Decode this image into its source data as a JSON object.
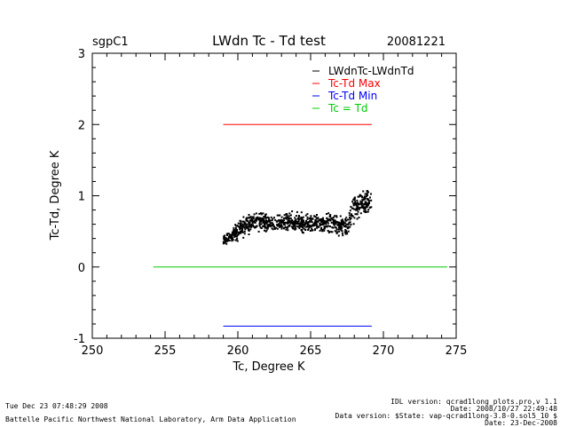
{
  "header": {
    "site": "sgpC1",
    "title": "LWdn Tc - Td test",
    "date": "20081221"
  },
  "footer": {
    "timestamp": "Tue Dec 23 07:48:29 2008",
    "lab": "Battelle Pacific Northwest National Laboratory, Arm Data Application",
    "idl_version": "IDL version: qcrad1long_plots.pro,v 1.1",
    "idl_date": "Date: 2008/10/27 22:49:48",
    "data_version": "Data version: $State: vap-qcrad1long-3.8-0.sol5_10 $",
    "data_date": "Date: 23-Dec-2008"
  },
  "chart_data": {
    "type": "scatter",
    "title": "LWdn Tc - Td test",
    "xlabel": "Tc, Degree K",
    "ylabel": "Tc-Td, Degree K",
    "xlim": [
      250,
      275
    ],
    "ylim": [
      -1,
      3
    ],
    "xticks": [
      "250",
      "255",
      "260",
      "265",
      "270",
      "275"
    ],
    "yticks": [
      "-1",
      "0",
      "1",
      "2",
      "3"
    ],
    "grid": false,
    "legend_position": "top-right",
    "legend": [
      {
        "label": "LWdnTc-LWdnTd",
        "color": "#000000"
      },
      {
        "label": "Tc-Td Max",
        "color": "#ff0000"
      },
      {
        "label": "Tc-Td Min",
        "color": "#0000ff"
      },
      {
        "label": "Tc = Td",
        "color": "#00cc00"
      }
    ],
    "lines": [
      {
        "name": "Tc-Td Max",
        "color": "#ff0000",
        "x": [
          259.0,
          269.2
        ],
        "y": [
          2.0,
          2.0
        ]
      },
      {
        "name": "Tc-Td Min",
        "color": "#0000ff",
        "x": [
          259.0,
          269.2
        ],
        "y": [
          -0.83,
          -0.83
        ]
      },
      {
        "name": "Tc = Td",
        "color": "#00cc00",
        "x": [
          254.2,
          274.4
        ],
        "y": [
          0.0,
          0.0
        ]
      }
    ],
    "scatter_profile": {
      "name": "LWdnTc-LWdnTd",
      "color": "#000000",
      "x": [
        259.0,
        259.5,
        260.0,
        260.5,
        261.0,
        261.5,
        262.0,
        262.5,
        263.0,
        263.5,
        264.0,
        264.5,
        265.0,
        265.5,
        266.0,
        266.5,
        267.0,
        267.5,
        268.0,
        268.3,
        268.6,
        269.0,
        269.2
      ],
      "y_center": [
        0.38,
        0.42,
        0.5,
        0.58,
        0.62,
        0.63,
        0.62,
        0.6,
        0.62,
        0.64,
        0.63,
        0.62,
        0.6,
        0.62,
        0.62,
        0.62,
        0.58,
        0.55,
        0.85,
        0.9,
        0.88,
        0.9,
        0.92
      ],
      "y_spread": [
        0.05,
        0.07,
        0.1,
        0.12,
        0.1,
        0.09,
        0.1,
        0.08,
        0.1,
        0.09,
        0.1,
        0.09,
        0.1,
        0.09,
        0.1,
        0.1,
        0.1,
        0.1,
        0.18,
        0.15,
        0.15,
        0.15,
        0.12
      ],
      "n_points": 900
    }
  }
}
